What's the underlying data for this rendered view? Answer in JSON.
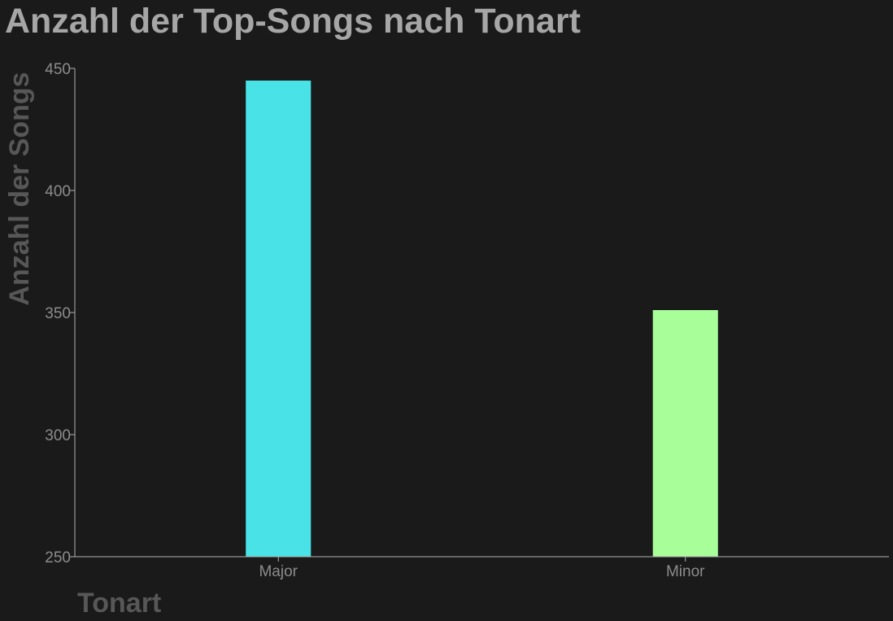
{
  "chart_data": {
    "type": "bar",
    "title": "Anzahl der Top-Songs nach Tonart",
    "xlabel": "Tonart",
    "ylabel": "Anzahl der Songs",
    "categories": [
      "Major",
      "Minor"
    ],
    "values": [
      445,
      351
    ],
    "colors": [
      "#49e2e7",
      "#a8ff9a"
    ],
    "ylim": [
      250,
      450
    ],
    "yticks": [
      250,
      300,
      350,
      400,
      450
    ],
    "grid": false,
    "legend": "none"
  }
}
